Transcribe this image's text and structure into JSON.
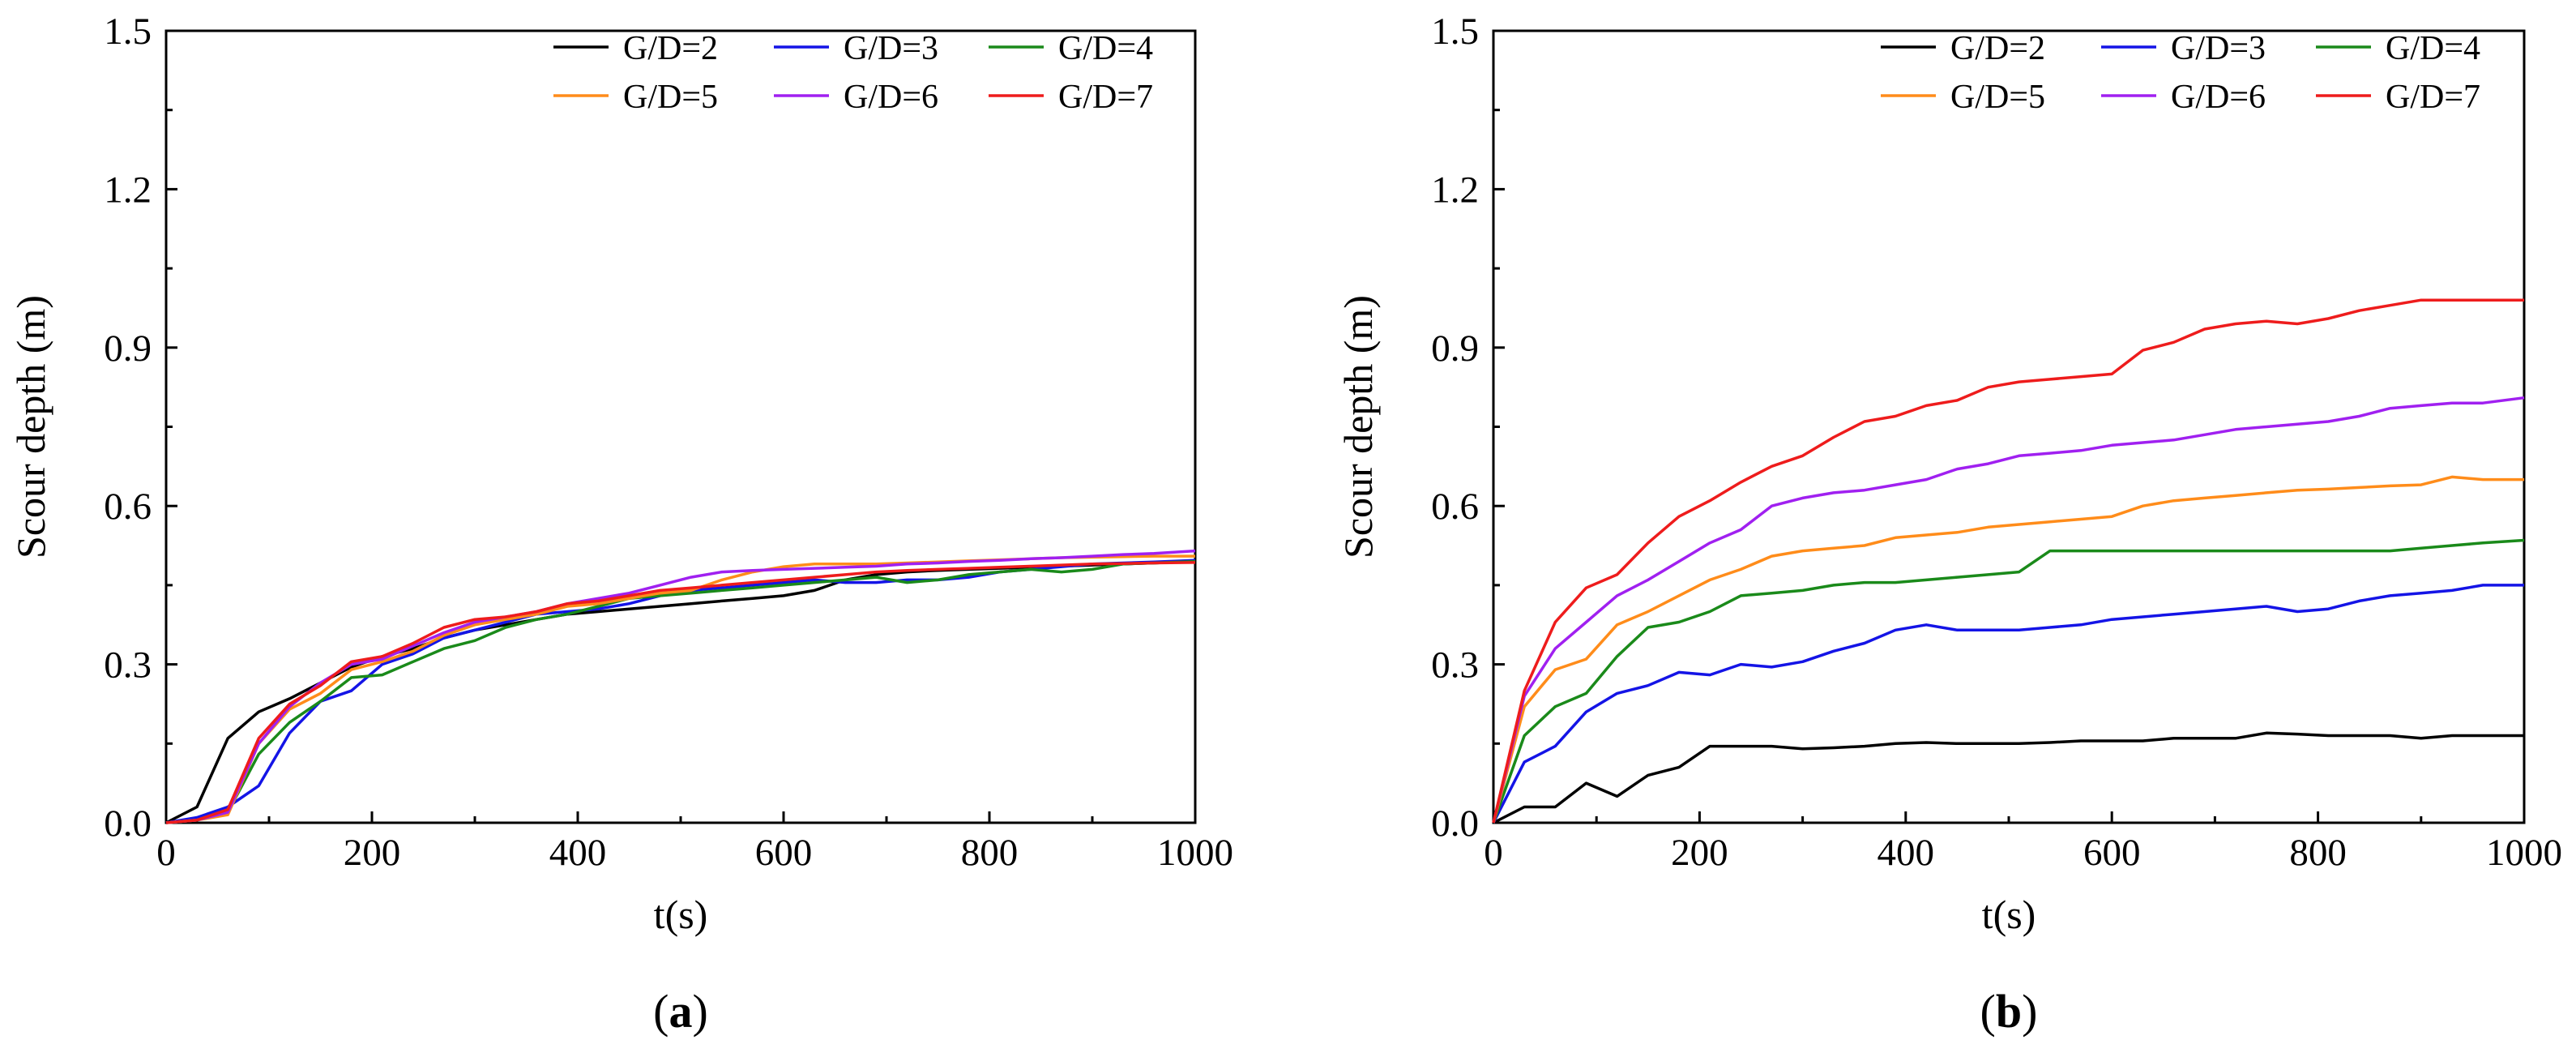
{
  "colors": {
    "G/D=2": "#000000",
    "G/D=3": "#1414e6",
    "G/D=4": "#1a8a1a",
    "G/D=5": "#ff8c1a",
    "G/D=6": "#a020f0",
    "G/D=7": "#ee1c1c"
  },
  "chart_data": [
    {
      "type": "line",
      "panel_label": "a",
      "xlabel": "t(s)",
      "ylabel": "Scour depth (m)",
      "xlim": [
        0,
        1000
      ],
      "ylim": [
        0,
        1.5
      ],
      "xticks": [
        "0",
        "200",
        "400",
        "600",
        "800",
        "1000"
      ],
      "yticks": [
        "0.0",
        "0.3",
        "0.6",
        "0.9",
        "1.2",
        "1.5"
      ],
      "x": [
        0,
        30,
        60,
        90,
        120,
        150,
        180,
        210,
        240,
        270,
        300,
        330,
        360,
        390,
        420,
        450,
        480,
        510,
        540,
        570,
        600,
        630,
        660,
        690,
        720,
        750,
        780,
        810,
        840,
        870,
        900,
        930,
        960,
        1000
      ],
      "legend_position": "top-right",
      "series": [
        {
          "name": "G/D=2",
          "values": [
            0,
            0.03,
            0.16,
            0.21,
            0.235,
            0.265,
            0.295,
            0.315,
            0.33,
            0.35,
            0.365,
            0.375,
            0.385,
            0.395,
            0.4,
            0.405,
            0.41,
            0.415,
            0.42,
            0.425,
            0.43,
            0.44,
            0.46,
            0.47,
            0.475,
            0.478,
            0.48,
            0.482,
            0.484,
            0.486,
            0.488,
            0.49,
            0.492,
            0.495
          ]
        },
        {
          "name": "G/D=3",
          "values": [
            0,
            0.01,
            0.03,
            0.07,
            0.17,
            0.23,
            0.25,
            0.3,
            0.32,
            0.35,
            0.365,
            0.38,
            0.395,
            0.4,
            0.405,
            0.415,
            0.43,
            0.44,
            0.445,
            0.45,
            0.455,
            0.46,
            0.455,
            0.455,
            0.46,
            0.46,
            0.465,
            0.475,
            0.48,
            0.485,
            0.49,
            0.492,
            0.494,
            0.497
          ]
        },
        {
          "name": "G/D=4",
          "values": [
            0,
            0.005,
            0.02,
            0.13,
            0.19,
            0.23,
            0.275,
            0.28,
            0.305,
            0.33,
            0.345,
            0.37,
            0.385,
            0.395,
            0.41,
            0.425,
            0.43,
            0.435,
            0.44,
            0.445,
            0.45,
            0.455,
            0.46,
            0.465,
            0.455,
            0.46,
            0.47,
            0.475,
            0.48,
            0.475,
            0.48,
            0.49,
            0.492,
            0.495
          ]
        },
        {
          "name": "G/D=5",
          "values": [
            0,
            0.005,
            0.015,
            0.15,
            0.215,
            0.245,
            0.29,
            0.305,
            0.325,
            0.355,
            0.375,
            0.385,
            0.395,
            0.41,
            0.415,
            0.425,
            0.435,
            0.44,
            0.46,
            0.475,
            0.485,
            0.49,
            0.49,
            0.49,
            0.492,
            0.494,
            0.496,
            0.498,
            0.5,
            0.502,
            0.503,
            0.504,
            0.505,
            0.505
          ]
        },
        {
          "name": "G/D=6",
          "values": [
            0,
            0.005,
            0.02,
            0.15,
            0.22,
            0.265,
            0.3,
            0.31,
            0.335,
            0.36,
            0.38,
            0.39,
            0.4,
            0.415,
            0.425,
            0.435,
            0.45,
            0.465,
            0.475,
            0.478,
            0.48,
            0.482,
            0.484,
            0.486,
            0.49,
            0.492,
            0.495,
            0.497,
            0.5,
            0.502,
            0.505,
            0.508,
            0.51,
            0.515
          ]
        },
        {
          "name": "G/D=7",
          "values": [
            0,
            0.005,
            0.025,
            0.16,
            0.225,
            0.26,
            0.305,
            0.315,
            0.34,
            0.37,
            0.385,
            0.39,
            0.4,
            0.415,
            0.42,
            0.43,
            0.44,
            0.445,
            0.45,
            0.455,
            0.46,
            0.465,
            0.47,
            0.475,
            0.478,
            0.48,
            0.482,
            0.484,
            0.486,
            0.488,
            0.49,
            0.491,
            0.492,
            0.493
          ]
        }
      ]
    },
    {
      "type": "line",
      "panel_label": "b",
      "xlabel": "t(s)",
      "ylabel": "Scour depth (m)",
      "xlim": [
        0,
        1000
      ],
      "ylim": [
        0,
        1.5
      ],
      "xticks": [
        "0",
        "200",
        "400",
        "600",
        "800",
        "1000"
      ],
      "yticks": [
        "0.0",
        "0.3",
        "0.6",
        "0.9",
        "1.2",
        "1.5"
      ],
      "x": [
        0,
        30,
        60,
        90,
        120,
        150,
        180,
        210,
        240,
        270,
        300,
        330,
        360,
        390,
        420,
        450,
        480,
        510,
        540,
        570,
        600,
        630,
        660,
        690,
        720,
        750,
        780,
        810,
        840,
        870,
        900,
        930,
        960,
        1000
      ],
      "legend_position": "top-right",
      "series": [
        {
          "name": "G/D=2",
          "values": [
            0,
            0.03,
            0.03,
            0.075,
            0.05,
            0.09,
            0.105,
            0.145,
            0.145,
            0.145,
            0.14,
            0.142,
            0.145,
            0.15,
            0.152,
            0.15,
            0.15,
            0.15,
            0.152,
            0.155,
            0.155,
            0.155,
            0.16,
            0.16,
            0.16,
            0.17,
            0.168,
            0.165,
            0.165,
            0.165,
            0.16,
            0.165,
            0.165,
            0.165
          ]
        },
        {
          "name": "G/D=3",
          "values": [
            0,
            0.115,
            0.145,
            0.21,
            0.245,
            0.26,
            0.285,
            0.28,
            0.3,
            0.295,
            0.305,
            0.325,
            0.34,
            0.365,
            0.375,
            0.365,
            0.365,
            0.365,
            0.37,
            0.375,
            0.385,
            0.39,
            0.395,
            0.4,
            0.405,
            0.41,
            0.4,
            0.405,
            0.42,
            0.43,
            0.435,
            0.44,
            0.45,
            0.45
          ]
        },
        {
          "name": "G/D=4",
          "values": [
            0,
            0.165,
            0.22,
            0.245,
            0.315,
            0.37,
            0.38,
            0.4,
            0.43,
            0.435,
            0.44,
            0.45,
            0.455,
            0.455,
            0.46,
            0.465,
            0.47,
            0.475,
            0.515,
            0.515,
            0.515,
            0.515,
            0.515,
            0.515,
            0.515,
            0.515,
            0.515,
            0.515,
            0.515,
            0.515,
            0.52,
            0.525,
            0.53,
            0.535
          ]
        },
        {
          "name": "G/D=5",
          "values": [
            0,
            0.22,
            0.29,
            0.31,
            0.375,
            0.4,
            0.43,
            0.46,
            0.48,
            0.505,
            0.515,
            0.52,
            0.525,
            0.54,
            0.545,
            0.55,
            0.56,
            0.565,
            0.57,
            0.575,
            0.58,
            0.6,
            0.61,
            0.615,
            0.62,
            0.625,
            0.63,
            0.632,
            0.635,
            0.638,
            0.64,
            0.655,
            0.65,
            0.65
          ]
        },
        {
          "name": "G/D=6",
          "values": [
            0,
            0.24,
            0.33,
            0.38,
            0.43,
            0.46,
            0.495,
            0.53,
            0.555,
            0.6,
            0.615,
            0.625,
            0.63,
            0.64,
            0.65,
            0.67,
            0.68,
            0.695,
            0.7,
            0.705,
            0.715,
            0.72,
            0.725,
            0.735,
            0.745,
            0.75,
            0.755,
            0.76,
            0.77,
            0.785,
            0.79,
            0.795,
            0.795,
            0.805
          ]
        },
        {
          "name": "G/D=7",
          "values": [
            0,
            0.25,
            0.38,
            0.445,
            0.47,
            0.53,
            0.58,
            0.61,
            0.645,
            0.675,
            0.695,
            0.73,
            0.76,
            0.77,
            0.79,
            0.8,
            0.825,
            0.835,
            0.84,
            0.845,
            0.85,
            0.895,
            0.91,
            0.935,
            0.945,
            0.95,
            0.945,
            0.955,
            0.97,
            0.98,
            0.99,
            0.99,
            0.99,
            0.99
          ]
        }
      ]
    }
  ]
}
